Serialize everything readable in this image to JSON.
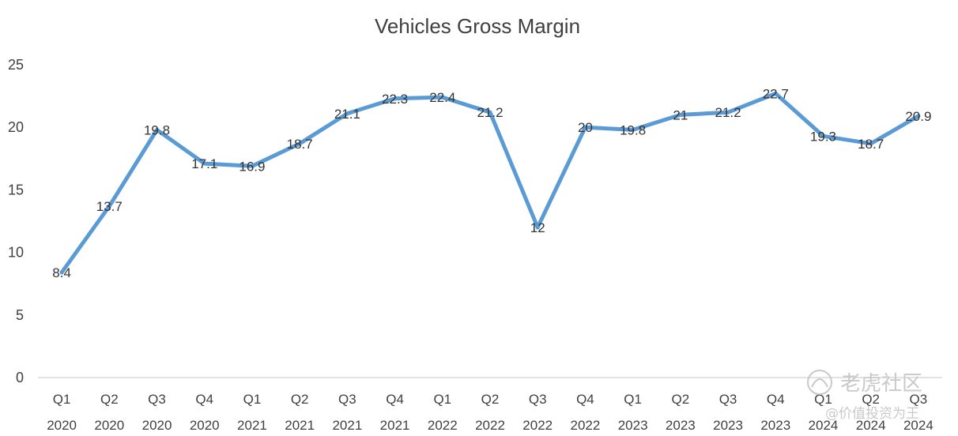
{
  "chart_data": {
    "type": "line",
    "title": "Vehicles Gross Margin",
    "xlabel": "",
    "ylabel": "",
    "ylim": [
      0,
      25
    ],
    "yticks": [
      0,
      5,
      10,
      15,
      20,
      25
    ],
    "grid": false,
    "legend": "none",
    "line_color": "#5b9bd5",
    "categories": [
      {
        "quarter": "Q1",
        "year": "2020"
      },
      {
        "quarter": "Q2",
        "year": "2020"
      },
      {
        "quarter": "Q3",
        "year": "2020"
      },
      {
        "quarter": "Q4",
        "year": "2020"
      },
      {
        "quarter": "Q1",
        "year": "2021"
      },
      {
        "quarter": "Q2",
        "year": "2021"
      },
      {
        "quarter": "Q3",
        "year": "2021"
      },
      {
        "quarter": "Q4",
        "year": "2021"
      },
      {
        "quarter": "Q1",
        "year": "2022"
      },
      {
        "quarter": "Q2",
        "year": "2022"
      },
      {
        "quarter": "Q3",
        "year": "2022"
      },
      {
        "quarter": "Q4",
        "year": "2022"
      },
      {
        "quarter": "Q1",
        "year": "2023"
      },
      {
        "quarter": "Q2",
        "year": "2023"
      },
      {
        "quarter": "Q3",
        "year": "2023"
      },
      {
        "quarter": "Q4",
        "year": "2023"
      },
      {
        "quarter": "Q1",
        "year": "2024"
      },
      {
        "quarter": "Q2",
        "year": "2024"
      },
      {
        "quarter": "Q3",
        "year": "2024"
      }
    ],
    "values": [
      8.4,
      13.7,
      19.8,
      17.1,
      16.9,
      18.7,
      21.1,
      22.3,
      22.4,
      21.2,
      12,
      20,
      19.8,
      21,
      21.2,
      22.7,
      19.3,
      18.7,
      20.9
    ],
    "data_labels": [
      "8.4",
      "13.7",
      "19.8",
      "17.1",
      "16.9",
      "18.7",
      "21.1",
      "22.3",
      "22.4",
      "21.2",
      "12",
      "20",
      "19.8",
      "21",
      "21.2",
      "22.7",
      "19.3",
      "18.7",
      "20.9"
    ]
  },
  "watermark": {
    "site": "老虎社区",
    "author": "@价值投资为王"
  }
}
